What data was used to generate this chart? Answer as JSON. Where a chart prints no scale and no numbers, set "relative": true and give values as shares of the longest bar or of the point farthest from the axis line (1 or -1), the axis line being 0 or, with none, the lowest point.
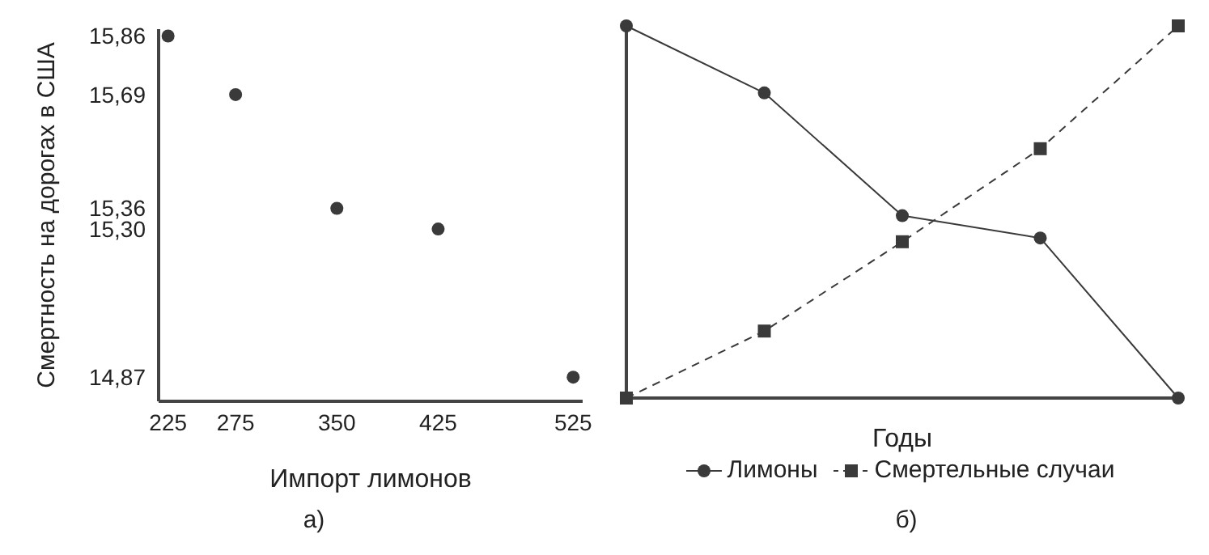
{
  "chart_data": [
    {
      "type": "scatter",
      "xlabel": "Импорт лимонов",
      "ylabel": "Смертность на дорогах в США",
      "x": [
        225,
        275,
        350,
        425,
        525
      ],
      "values": [
        15.86,
        15.69,
        15.36,
        15.3,
        14.87
      ],
      "color": "#3a3a3a",
      "marker": "circle",
      "xlim": [
        218,
        532
      ],
      "ylim": [
        14.8,
        15.88
      ],
      "xticks": [
        225,
        275,
        350,
        425,
        525
      ],
      "yticks": [
        {
          "value": 14.87,
          "label": "14,87"
        },
        {
          "value": 15.3,
          "label": "15,30"
        },
        {
          "value": 15.36,
          "label": "15,36"
        },
        {
          "value": 15.69,
          "label": "15,69"
        },
        {
          "value": 15.86,
          "label": "15,86"
        }
      ],
      "grid": false,
      "annotations": [
        "а)"
      ]
    },
    {
      "type": "line",
      "relative": true,
      "xlabel": "Годы",
      "categories": [
        null,
        null,
        null,
        null,
        null
      ],
      "series": [
        {
          "name": "Лимоны",
          "color": "#3a3a3a",
          "values": [
            1,
            0.82,
            0.49,
            0.43,
            0
          ],
          "marker": "circle",
          "line_style": "solid"
        },
        {
          "name": "Смертельные случаи",
          "color": "#3a3a3a",
          "values": [
            0,
            0.18,
            0.42,
            0.67,
            1
          ],
          "marker": "square",
          "line_style": "dashed"
        }
      ],
      "legend": "bottom",
      "grid": false,
      "annotations": [
        "б)"
      ]
    }
  ]
}
